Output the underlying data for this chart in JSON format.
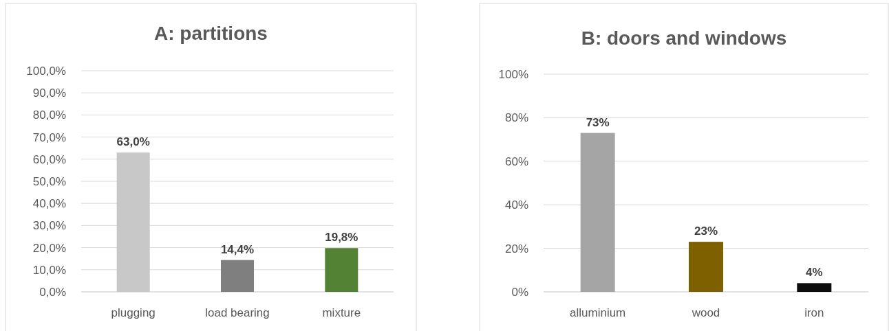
{
  "chart_data": [
    {
      "type": "bar",
      "title": "A: partitions",
      "categories": [
        "plugging",
        "load bearing",
        "mixture"
      ],
      "values": [
        63.0,
        14.4,
        19.8
      ],
      "colors": [
        "#c8c8c8",
        "#7f7f7f",
        "#548235"
      ],
      "value_labels": [
        "63,0%",
        "14,4%",
        "19,8%"
      ],
      "ylim": [
        0,
        100
      ],
      "yticks": [
        {
          "value": 0,
          "label": "0,0%"
        },
        {
          "value": 10,
          "label": "10,0%"
        },
        {
          "value": 20,
          "label": "20,0%"
        },
        {
          "value": 30,
          "label": "30,0%"
        },
        {
          "value": 40,
          "label": "40,0%"
        },
        {
          "value": 50,
          "label": "50,0%"
        },
        {
          "value": 60,
          "label": "60,0%"
        },
        {
          "value": 70,
          "label": "70,0%"
        },
        {
          "value": 80,
          "label": "80,0%"
        },
        {
          "value": 90,
          "label": "90,0%"
        },
        {
          "value": 100,
          "label": "100,0%"
        }
      ],
      "grid": "y"
    },
    {
      "type": "bar",
      "title": "B: doors and windows",
      "categories": [
        "alluminium",
        "wood",
        "iron"
      ],
      "values": [
        73,
        23,
        4
      ],
      "colors": [
        "#a5a5a5",
        "#7f6000",
        "#0d0d0d"
      ],
      "value_labels": [
        "73%",
        "23%",
        "4%"
      ],
      "ylim": [
        0,
        100
      ],
      "yticks": [
        {
          "value": 0,
          "label": "0%"
        },
        {
          "value": 20,
          "label": "20%"
        },
        {
          "value": 40,
          "label": "40%"
        },
        {
          "value": 60,
          "label": "60%"
        },
        {
          "value": 80,
          "label": "80%"
        },
        {
          "value": 100,
          "label": "100%"
        }
      ],
      "grid": "y"
    }
  ]
}
